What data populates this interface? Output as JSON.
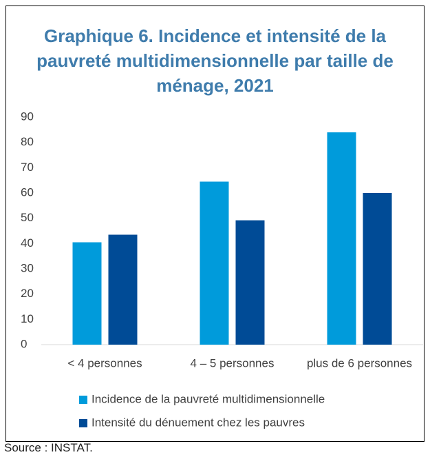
{
  "chart_data": {
    "type": "bar",
    "title": "Graphique 6. Incidence et intensité de la pauvreté multidimensionnelle par taille de ménage, 2021",
    "categories": [
      "< 4 personnes",
      "4 – 5 personnes",
      "plus de 6 personnes"
    ],
    "series": [
      {
        "name": "Incidence de la pauvreté multidimensionnelle",
        "color": "#009bdb",
        "values": [
          40.5,
          64.5,
          84
        ]
      },
      {
        "name": "Intensité du dénuement chez les pauvres",
        "color": "#004b96",
        "values": [
          43.5,
          49.2,
          60
        ]
      }
    ],
    "ylim": [
      0,
      90
    ],
    "yticks": [
      0,
      10,
      20,
      30,
      40,
      50,
      60,
      70,
      80,
      90
    ],
    "grid": false,
    "legend": "bottom",
    "source": "Source : INSTAT."
  }
}
